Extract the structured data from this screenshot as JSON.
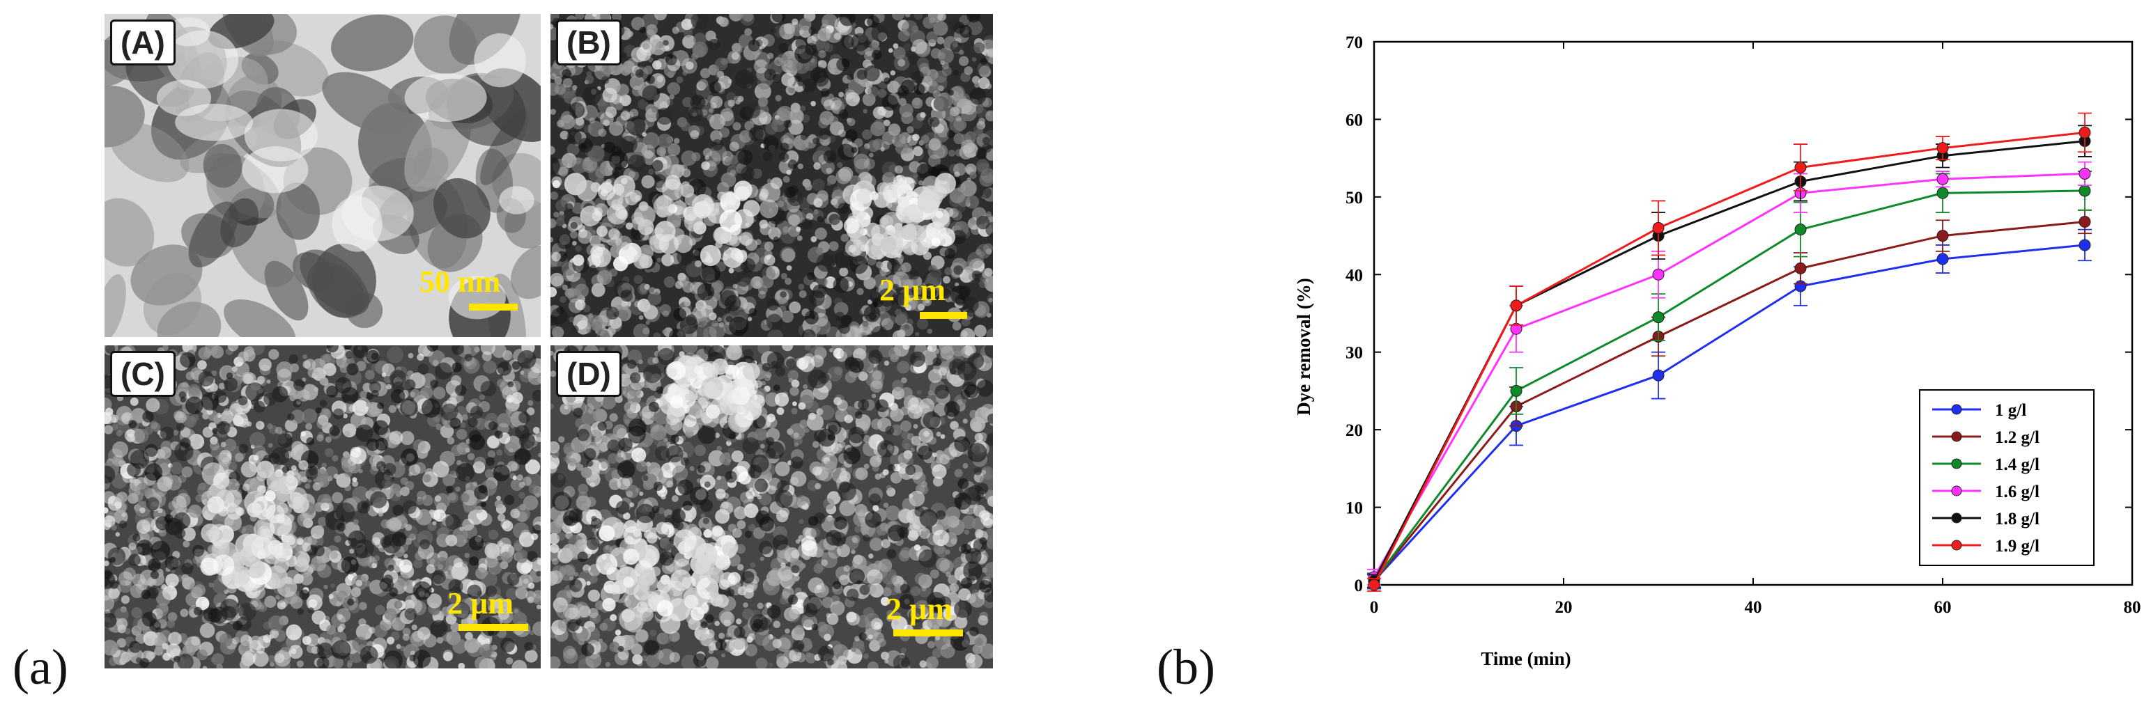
{
  "figure": {
    "panel_a_label": "(a)",
    "panel_b_label": "(b)"
  },
  "micrographs": [
    {
      "letter": "(A)",
      "scale": "50 nm",
      "style": "tem"
    },
    {
      "letter": "(B)",
      "scale": "2 µm",
      "style": "sem-dark"
    },
    {
      "letter": "(C)",
      "scale": "2 µm",
      "style": "sem"
    },
    {
      "letter": "(D)",
      "scale": "2 µm",
      "style": "sem"
    }
  ],
  "chart_data": {
    "type": "line",
    "xlabel": "Time (min)",
    "ylabel": "Dye removal (%)",
    "xlim": [
      0,
      80
    ],
    "ylim": [
      0,
      70
    ],
    "xticks": [
      0,
      20,
      40,
      60,
      80
    ],
    "yticks": [
      0,
      10,
      20,
      30,
      40,
      50,
      60,
      70
    ],
    "grid": false,
    "legend_position": "bottom-right",
    "x": [
      0,
      15,
      30,
      45,
      60,
      75
    ],
    "series": [
      {
        "name": "1 g/l",
        "color": "#1f2ff0",
        "values": [
          0.5,
          20.5,
          27.0,
          38.5,
          42.0,
          43.8
        ],
        "errors": [
          1.0,
          2.5,
          3.0,
          2.5,
          1.8,
          2.0
        ]
      },
      {
        "name": "1.2 g/l",
        "color": "#8b1a1a",
        "values": [
          0.5,
          23.0,
          32.0,
          40.8,
          45.0,
          46.8
        ],
        "errors": [
          0.8,
          2.5,
          2.5,
          2.0,
          2.0,
          1.5
        ]
      },
      {
        "name": "1.4 g/l",
        "color": "#0f8a2a",
        "values": [
          0.5,
          25.0,
          34.5,
          45.8,
          50.5,
          50.8
        ],
        "errors": [
          0.8,
          3.0,
          3.0,
          3.5,
          2.5,
          2.5
        ]
      },
      {
        "name": "1.6 g/l",
        "color": "#ff33ff",
        "values": [
          1.0,
          33.0,
          40.0,
          50.5,
          52.3,
          53.0
        ],
        "errors": [
          1.0,
          3.0,
          3.0,
          2.5,
          1.0,
          1.5
        ]
      },
      {
        "name": "1.8 g/l",
        "color": "#111111",
        "values": [
          0.5,
          36.0,
          45.0,
          52.0,
          55.3,
          57.2
        ],
        "errors": [
          0.8,
          2.5,
          3.0,
          2.5,
          1.5,
          2.0
        ]
      },
      {
        "name": "1.9 g/l",
        "color": "#ee1c1c",
        "values": [
          0.0,
          36.0,
          46.0,
          53.8,
          56.3,
          58.3
        ],
        "errors": [
          0.8,
          2.5,
          3.5,
          3.0,
          1.5,
          2.5
        ]
      }
    ]
  }
}
